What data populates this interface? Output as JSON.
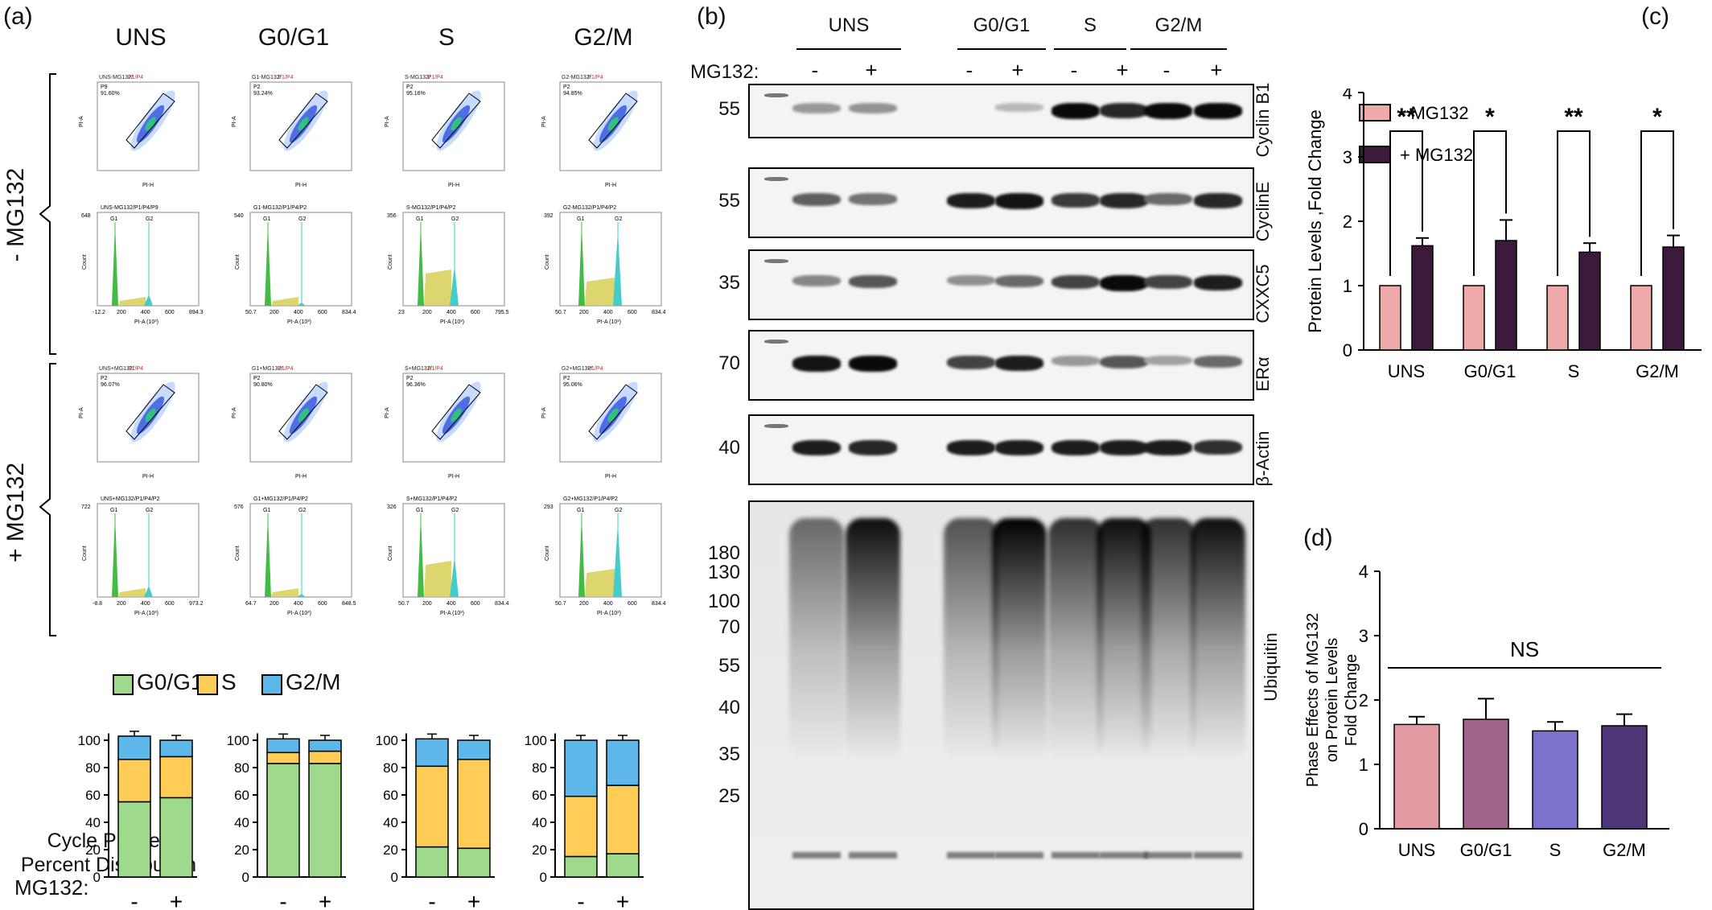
{
  "panel_a": {
    "label": "(a)",
    "columns": [
      "UNS",
      "G0/G1",
      "S",
      "G2/M"
    ],
    "row_labels": [
      "- MG132",
      "+ MG132"
    ],
    "scatter_titles": [
      [
        "UNS-MG132/",
        "G1-MG132/",
        "S-MG132/",
        "G2-MG132/"
      ],
      [
        "UNS+MG132/",
        "G1+MG132/",
        "S+MG132/",
        "G2+MG132/"
      ]
    ],
    "gate_suffix": "P1/P4",
    "scatter_gate_names": [
      [
        "P9",
        "P2",
        "P2",
        "P2"
      ],
      [
        "P2",
        "P2",
        "P2",
        "P2"
      ]
    ],
    "scatter_pcts": [
      [
        "91.60%",
        "93.24%",
        "95.16%",
        "94.85%"
      ],
      [
        "96.07%",
        "90.80%",
        "96.36%",
        "95.06%"
      ]
    ],
    "scatter_xlabel": "PI-H",
    "scatter_ylabel": "PI-A",
    "hist_titles": [
      [
        "UNS-MG132/P1/P4/P9",
        "G1-MG132/P1/P4/P2",
        "S-MG132/P1/P4/P2",
        "G2-MG132/P1/P4/P2"
      ],
      [
        "UNS+MG132/P1/P4/P2",
        "G1+MG132/P1/P4/P2",
        "S+MG132/P1/P4/P2",
        "G2+MG132/P1/P4/P2"
      ]
    ],
    "hist_ymax": [
      [
        "648",
        "540",
        "356",
        "392"
      ],
      [
        "722",
        "576",
        "326",
        "293"
      ]
    ],
    "hist_xticks": [
      [
        [
          "-12.2",
          "200",
          "400",
          "600",
          "894.3"
        ],
        [
          "50.7",
          "200",
          "400",
          "600",
          "834.4"
        ],
        [
          "23",
          "200",
          "400",
          "600",
          "795.5"
        ],
        [
          "50.7",
          "200",
          "400",
          "600",
          "834.4"
        ]
      ],
      [
        [
          "-8.8",
          "200",
          "400",
          "600",
          "973.2"
        ],
        [
          "64.7",
          "200",
          "400",
          "600",
          "848.5"
        ],
        [
          "50.7",
          "200",
          "400",
          "600",
          "834.4"
        ],
        [
          "50.7",
          "200",
          "400",
          "600",
          "834.4"
        ]
      ]
    ],
    "hist_xlabel": "PI-A (10³)",
    "hist_ylabel": "Count",
    "hist_peaks": [
      "G1",
      "G2"
    ]
  },
  "panel_a_bars": {
    "legend": [
      "G0/G1",
      "S",
      "G2/M"
    ],
    "colors": {
      "g01": "#9fd98b",
      "s": "#ffcc55",
      "g2m": "#5db7e8"
    },
    "ylabel_line1": "Cycle Phases",
    "ylabel_line2": "Percent Distribution",
    "yticks": [
      "0",
      "20",
      "40",
      "60",
      "80",
      "100"
    ],
    "mg132_label": "MG132:",
    "signs": [
      "-",
      "+"
    ]
  },
  "chart_data": [
    {
      "type": "bar",
      "title": "",
      "ylabel": "Cycle Phases Percent Distribution",
      "ylim": [
        0,
        100
      ],
      "groups": [
        "UNS",
        "G0/G1",
        "S",
        "G2/M"
      ],
      "categories": [
        "-",
        "+"
      ],
      "series": [
        {
          "name": "G0/G1",
          "values": [
            [
              55,
              58
            ],
            [
              83,
              83
            ],
            [
              22,
              21
            ],
            [
              15,
              17
            ]
          ]
        },
        {
          "name": "S",
          "values": [
            [
              31,
              30
            ],
            [
              8,
              9
            ],
            [
              59,
              65
            ],
            [
              44,
              50
            ]
          ]
        },
        {
          "name": "G2/M",
          "values": [
            [
              17,
              12
            ],
            [
              10,
              8
            ],
            [
              20,
              14
            ],
            [
              41,
              33
            ]
          ]
        }
      ]
    },
    {
      "type": "bar",
      "title": "",
      "ylabel": "Protein Levels ,Fold Change",
      "ylim": [
        0,
        4
      ],
      "categories": [
        "UNS",
        "G0/G1",
        "S",
        "G2/M"
      ],
      "series": [
        {
          "name": "- MG132",
          "values": [
            1,
            1,
            1,
            1
          ]
        },
        {
          "name": "+ MG132",
          "values": [
            1.62,
            1.7,
            1.52,
            1.6
          ],
          "errors": [
            0.12,
            0.32,
            0.14,
            0.18
          ]
        }
      ],
      "significance": [
        "**",
        "*",
        "**",
        "*"
      ]
    },
    {
      "type": "bar",
      "title": "",
      "ylabel": "Phase Effects of MG132 on Protein Levels Fold Change",
      "ylim": [
        0,
        4
      ],
      "categories": [
        "UNS",
        "G0/G1",
        "S",
        "G2/M"
      ],
      "values": [
        1.62,
        1.7,
        1.52,
        1.6
      ],
      "errors": [
        0.12,
        0.32,
        0.14,
        0.18
      ],
      "colors": [
        "#e39aa0",
        "#a0638b",
        "#7b73c9",
        "#4d3577"
      ],
      "annotation": "NS"
    }
  ],
  "panel_b": {
    "label": "(b)",
    "groups": [
      "UNS",
      "G0/G1",
      "S",
      "G2/M"
    ],
    "mg132_label": "MG132:",
    "signs": [
      "-",
      "+",
      "-",
      "+",
      "-",
      "+",
      "-",
      "+"
    ],
    "blots": [
      {
        "name": "Cyclin B1",
        "marker": "55"
      },
      {
        "name": "CyclinE",
        "marker": "55"
      },
      {
        "name": "CXXC5",
        "marker": "35"
      },
      {
        "name": "ERα",
        "marker": "70"
      },
      {
        "name": "β-Actin",
        "marker": "40"
      }
    ],
    "ubiquitin_label": "Ubiquitin",
    "ubiquitin_markers": [
      "180",
      "130",
      "100",
      "70",
      "55",
      "40",
      "35",
      "25"
    ]
  },
  "panel_c": {
    "label": "(c)",
    "legend": [
      "- MG132",
      "+ MG132"
    ],
    "colors": [
      "#eea9a9",
      "#3b1a3c"
    ],
    "ylabel": "Protein Levels ,Fold Change",
    "yticks": [
      "0",
      "1",
      "2",
      "3",
      "4"
    ]
  },
  "panel_d": {
    "label": "(d)",
    "ylabel_lines": [
      "Phase Effects of MG132",
      "on Protein Levels",
      "Fold Change"
    ],
    "yticks": [
      "0",
      "1",
      "2",
      "3",
      "4"
    ],
    "annotation": "NS"
  }
}
